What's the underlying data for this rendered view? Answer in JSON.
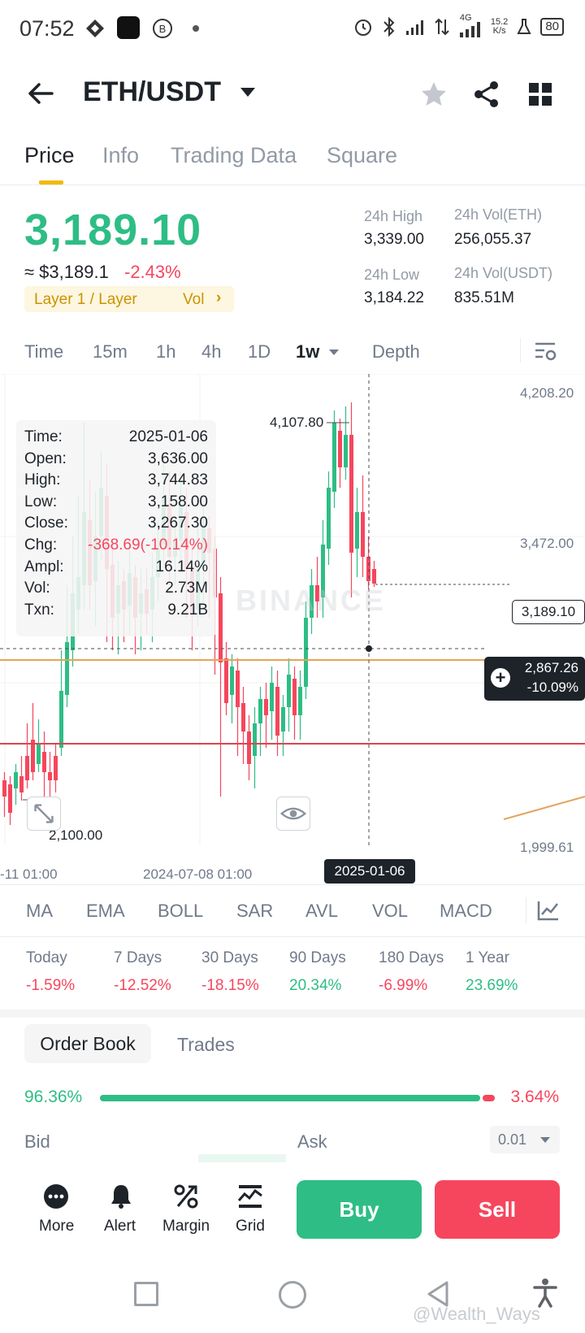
{
  "status_bar": {
    "time": "07:52",
    "speed_top": "15.2",
    "speed_bottom": "K/s",
    "network": "4G",
    "battery": "80"
  },
  "header": {
    "pair": "ETH/USDT"
  },
  "tabs": [
    "Price",
    "Info",
    "Trading Data",
    "Square"
  ],
  "price": {
    "last": "3,189.10",
    "approx": "≈ $3,189.1",
    "change_pct": "-2.43%",
    "tag": "Layer 1 / Layer",
    "tag_link": "Vol",
    "high_label": "24h High",
    "high": "3,339.00",
    "low_label": "24h Low",
    "low": "3,184.22",
    "vol_eth_label": "24h Vol(ETH)",
    "vol_eth": "256,055.37",
    "vol_usdt_label": "24h Vol(USDT)",
    "vol_usdt": "835.51M"
  },
  "intervals": [
    "Time",
    "15m",
    "1h",
    "4h",
    "1D",
    "1w",
    "Depth"
  ],
  "chart": {
    "y_ticks": [
      "4,208.20",
      "3,472.00",
      "1,999.61"
    ],
    "x_ticks": [
      "-11 01:00",
      "2024-07-08 01:00"
    ],
    "max_label": "4,107.80",
    "min_label": "2,100.00",
    "last_price_label": "3,189.10",
    "crosshair_value": "2,867.26",
    "crosshair_pct": "-10.09%",
    "crosshair_date": "2025-01-06",
    "watermark": "BINANCE",
    "tooltip": [
      {
        "k": "Time:",
        "v": "2025-01-06"
      },
      {
        "k": "Open:",
        "v": "3,636.00"
      },
      {
        "k": "High:",
        "v": "3,744.83"
      },
      {
        "k": "Low:",
        "v": "3,158.00"
      },
      {
        "k": "Close:",
        "v": "3,267.30"
      },
      {
        "k": "Chg:",
        "v": "-368.69(-10.14%)"
      },
      {
        "k": "Ampl:",
        "v": "16.14%"
      },
      {
        "k": "Vol:",
        "v": "2.73M"
      },
      {
        "k": "Txn:",
        "v": "9.21B"
      }
    ]
  },
  "indicators": [
    "MA",
    "EMA",
    "BOLL",
    "SAR",
    "AVL",
    "VOL",
    "MACD"
  ],
  "performance": [
    {
      "label": "Today",
      "value": "-1.59%"
    },
    {
      "label": "7 Days",
      "value": "-12.52%"
    },
    {
      "label": "30 Days",
      "value": "-18.15%"
    },
    {
      "label": "90 Days",
      "value": "20.34%"
    },
    {
      "label": "180 Days",
      "value": "-6.99%"
    },
    {
      "label": "1 Year",
      "value": "23.69%"
    }
  ],
  "orderbook": {
    "tab_active": "Order Book",
    "tab_other": "Trades",
    "bid_pct": "96.36%",
    "ask_pct": "3.64%",
    "bid_fraction": 0.9636,
    "bid_label": "Bid",
    "ask_label": "Ask",
    "step": "0.01"
  },
  "actions": {
    "more": "More",
    "alert": "Alert",
    "margin": "Margin",
    "grid": "Grid",
    "buy": "Buy",
    "sell": "Sell"
  },
  "watermark": "@Wealth_Ways",
  "colors": {
    "up": "#2ebd85",
    "down": "#f6465d",
    "accent": "#f0b90b",
    "dark": "#1e2329"
  }
}
